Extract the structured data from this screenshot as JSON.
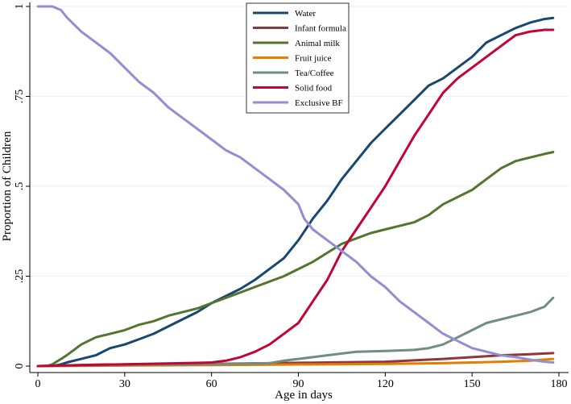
{
  "chart_data": {
    "type": "line",
    "title": "",
    "xlabel": "Age in days",
    "ylabel": "Proportion of Children",
    "xlim": [
      0,
      180
    ],
    "ylim": [
      0,
      1
    ],
    "x_ticks": [
      0,
      30,
      60,
      90,
      120,
      150,
      180
    ],
    "x_tick_labels": [
      "0",
      "30",
      "60",
      "90",
      "120",
      "150",
      "180"
    ],
    "y_ticks": [
      0,
      0.25,
      0.5,
      0.75,
      1
    ],
    "y_tick_labels": [
      "0",
      ".25",
      ".5",
      ".75",
      "1"
    ],
    "legend_position": "top-center",
    "grid": true,
    "series": [
      {
        "name": "Water",
        "color": "#1a476f",
        "points": [
          [
            0,
            0
          ],
          [
            5,
            0
          ],
          [
            8,
            0.005
          ],
          [
            10,
            0.01
          ],
          [
            15,
            0.02
          ],
          [
            20,
            0.03
          ],
          [
            25,
            0.05
          ],
          [
            30,
            0.06
          ],
          [
            35,
            0.075
          ],
          [
            40,
            0.09
          ],
          [
            45,
            0.11
          ],
          [
            50,
            0.13
          ],
          [
            55,
            0.15
          ],
          [
            60,
            0.175
          ],
          [
            65,
            0.195
          ],
          [
            70,
            0.215
          ],
          [
            75,
            0.24
          ],
          [
            80,
            0.27
          ],
          [
            85,
            0.3
          ],
          [
            90,
            0.35
          ],
          [
            95,
            0.41
          ],
          [
            100,
            0.46
          ],
          [
            105,
            0.52
          ],
          [
            110,
            0.57
          ],
          [
            115,
            0.62
          ],
          [
            120,
            0.66
          ],
          [
            125,
            0.7
          ],
          [
            130,
            0.74
          ],
          [
            135,
            0.78
          ],
          [
            140,
            0.8
          ],
          [
            145,
            0.83
          ],
          [
            150,
            0.86
          ],
          [
            155,
            0.9
          ],
          [
            160,
            0.92
          ],
          [
            165,
            0.94
          ],
          [
            170,
            0.955
          ],
          [
            175,
            0.965
          ],
          [
            178,
            0.968
          ]
        ]
      },
      {
        "name": "Infant formula",
        "color": "#90353b",
        "points": [
          [
            0,
            0
          ],
          [
            10,
            0.002
          ],
          [
            20,
            0.004
          ],
          [
            40,
            0.005
          ],
          [
            60,
            0.006
          ],
          [
            80,
            0.008
          ],
          [
            100,
            0.01
          ],
          [
            120,
            0.012
          ],
          [
            140,
            0.02
          ],
          [
            150,
            0.025
          ],
          [
            160,
            0.03
          ],
          [
            170,
            0.033
          ],
          [
            178,
            0.036
          ]
        ]
      },
      {
        "name": "Animal milk",
        "color": "#55752f",
        "points": [
          [
            0,
            0
          ],
          [
            3,
            0
          ],
          [
            5,
            0.005
          ],
          [
            8,
            0.02
          ],
          [
            10,
            0.03
          ],
          [
            15,
            0.06
          ],
          [
            20,
            0.08
          ],
          [
            25,
            0.09
          ],
          [
            30,
            0.1
          ],
          [
            35,
            0.115
          ],
          [
            40,
            0.125
          ],
          [
            45,
            0.14
          ],
          [
            50,
            0.15
          ],
          [
            55,
            0.16
          ],
          [
            60,
            0.175
          ],
          [
            65,
            0.19
          ],
          [
            70,
            0.205
          ],
          [
            75,
            0.22
          ],
          [
            80,
            0.235
          ],
          [
            85,
            0.25
          ],
          [
            90,
            0.27
          ],
          [
            95,
            0.29
          ],
          [
            100,
            0.315
          ],
          [
            105,
            0.34
          ],
          [
            110,
            0.355
          ],
          [
            115,
            0.37
          ],
          [
            120,
            0.38
          ],
          [
            125,
            0.39
          ],
          [
            130,
            0.4
          ],
          [
            135,
            0.42
          ],
          [
            140,
            0.45
          ],
          [
            145,
            0.47
          ],
          [
            150,
            0.49
          ],
          [
            155,
            0.52
          ],
          [
            160,
            0.55
          ],
          [
            165,
            0.57
          ],
          [
            170,
            0.58
          ],
          [
            175,
            0.59
          ],
          [
            178,
            0.595
          ]
        ]
      },
      {
        "name": "Fruit juice",
        "color": "#e37e00",
        "points": [
          [
            0,
            0
          ],
          [
            20,
            0.001
          ],
          [
            40,
            0.002
          ],
          [
            60,
            0.003
          ],
          [
            80,
            0.004
          ],
          [
            100,
            0.005
          ],
          [
            120,
            0.006
          ],
          [
            140,
            0.008
          ],
          [
            150,
            0.01
          ],
          [
            160,
            0.012
          ],
          [
            170,
            0.015
          ],
          [
            178,
            0.02
          ]
        ]
      },
      {
        "name": "Tea/Coffee",
        "color": "#6e8e84",
        "points": [
          [
            0,
            0
          ],
          [
            20,
            0.002
          ],
          [
            40,
            0.004
          ],
          [
            60,
            0.005
          ],
          [
            80,
            0.008
          ],
          [
            85,
            0.015
          ],
          [
            90,
            0.02
          ],
          [
            95,
            0.025
          ],
          [
            100,
            0.03
          ],
          [
            105,
            0.035
          ],
          [
            110,
            0.04
          ],
          [
            120,
            0.042
          ],
          [
            130,
            0.045
          ],
          [
            135,
            0.05
          ],
          [
            140,
            0.06
          ],
          [
            145,
            0.08
          ],
          [
            150,
            0.1
          ],
          [
            155,
            0.12
          ],
          [
            160,
            0.13
          ],
          [
            165,
            0.14
          ],
          [
            170,
            0.15
          ],
          [
            175,
            0.165
          ],
          [
            178,
            0.19
          ]
        ]
      },
      {
        "name": "Solid food",
        "color": "#c10534",
        "points": [
          [
            0,
            0
          ],
          [
            10,
            0.002
          ],
          [
            30,
            0.005
          ],
          [
            50,
            0.008
          ],
          [
            60,
            0.01
          ],
          [
            65,
            0.015
          ],
          [
            70,
            0.025
          ],
          [
            75,
            0.04
          ],
          [
            80,
            0.06
          ],
          [
            85,
            0.09
          ],
          [
            90,
            0.12
          ],
          [
            95,
            0.18
          ],
          [
            100,
            0.24
          ],
          [
            105,
            0.32
          ],
          [
            110,
            0.38
          ],
          [
            115,
            0.44
          ],
          [
            120,
            0.5
          ],
          [
            125,
            0.57
          ],
          [
            130,
            0.64
          ],
          [
            135,
            0.7
          ],
          [
            140,
            0.76
          ],
          [
            145,
            0.8
          ],
          [
            150,
            0.83
          ],
          [
            155,
            0.86
          ],
          [
            160,
            0.89
          ],
          [
            165,
            0.92
          ],
          [
            170,
            0.93
          ],
          [
            175,
            0.935
          ],
          [
            178,
            0.935
          ]
        ]
      },
      {
        "name": "Exclusive BF",
        "color": "#938dd2",
        "points": [
          [
            0,
            1
          ],
          [
            5,
            1
          ],
          [
            8,
            0.99
          ],
          [
            10,
            0.97
          ],
          [
            15,
            0.93
          ],
          [
            20,
            0.9
          ],
          [
            25,
            0.87
          ],
          [
            30,
            0.83
          ],
          [
            35,
            0.79
          ],
          [
            40,
            0.76
          ],
          [
            45,
            0.72
          ],
          [
            50,
            0.69
          ],
          [
            55,
            0.66
          ],
          [
            60,
            0.63
          ],
          [
            65,
            0.6
          ],
          [
            70,
            0.58
          ],
          [
            75,
            0.55
          ],
          [
            80,
            0.52
          ],
          [
            85,
            0.49
          ],
          [
            90,
            0.45
          ],
          [
            92,
            0.41
          ],
          [
            95,
            0.38
          ],
          [
            100,
            0.35
          ],
          [
            105,
            0.32
          ],
          [
            110,
            0.29
          ],
          [
            115,
            0.25
          ],
          [
            120,
            0.22
          ],
          [
            125,
            0.18
          ],
          [
            130,
            0.15
          ],
          [
            135,
            0.12
          ],
          [
            140,
            0.09
          ],
          [
            145,
            0.07
          ],
          [
            150,
            0.05
          ],
          [
            155,
            0.04
          ],
          [
            160,
            0.03
          ],
          [
            165,
            0.025
          ],
          [
            170,
            0.018
          ],
          [
            175,
            0.012
          ],
          [
            178,
            0.01
          ]
        ]
      }
    ]
  }
}
